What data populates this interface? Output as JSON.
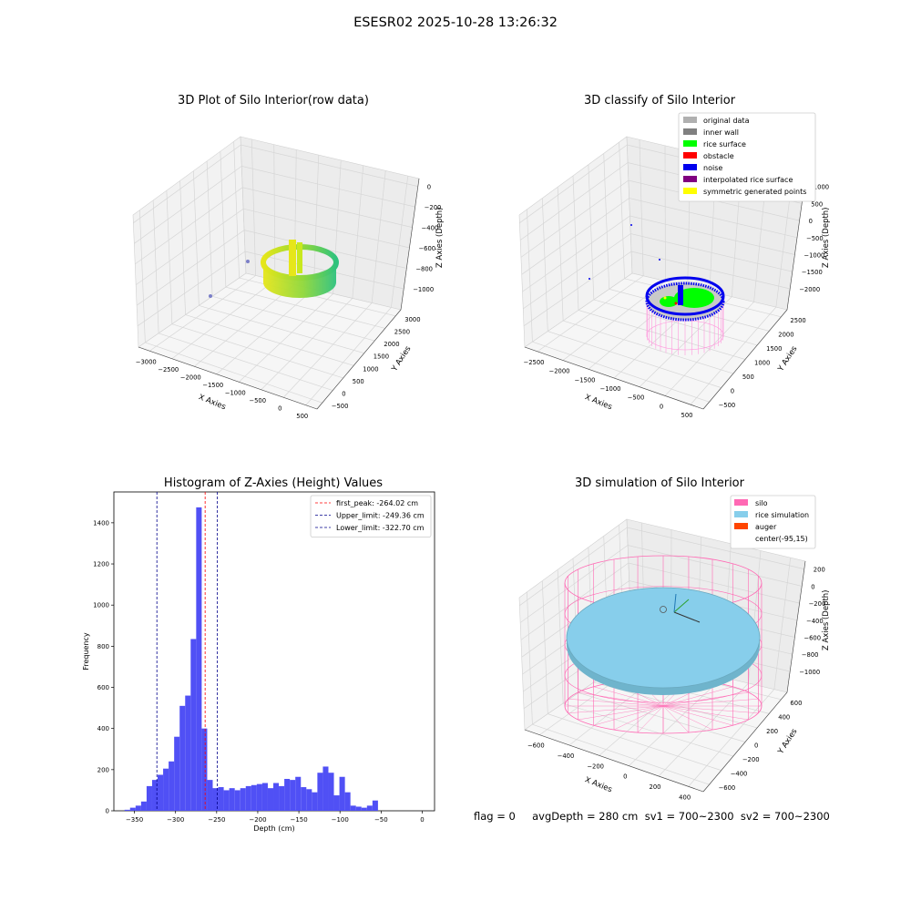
{
  "figure": {
    "suptitle": "ESESR02 2025-10-28 13:26:32",
    "status_line": "flag = 0     avgDepth = 280 cm  sv1 = 700~2300  sv2 = 700~2300"
  },
  "chart_data": [
    {
      "type": "scatter3d",
      "title": "3D Plot of Silo Interior(row data)",
      "xlabel": "X Axies",
      "ylabel": "Y Axies",
      "zlabel": "Z Axies (Depth)",
      "xticks": [
        "−3000",
        "−2500",
        "−2000",
        "−1500",
        "−1000",
        "−500",
        "0",
        "500"
      ],
      "yticks": [
        "−500",
        "0",
        "500",
        "1000",
        "1500",
        "2000",
        "2500",
        "3000"
      ],
      "zticks": [
        "0",
        "−200",
        "−400",
        "−600",
        "−800",
        "−1000"
      ],
      "colors": {
        "low": "#2ec27e",
        "high": "#e6e61a"
      }
    },
    {
      "type": "scatter3d",
      "title": "3D classify of Silo Interior",
      "xlabel": "X Axies",
      "ylabel": "Y Axies",
      "zlabel": "Z Axies (Depth)",
      "xticks": [
        "−2500",
        "−2000",
        "−1500",
        "−1000",
        "−500",
        "0",
        "500"
      ],
      "yticks": [
        "−500",
        "0",
        "500",
        "1000",
        "1500",
        "2000",
        "2500"
      ],
      "zticks": [
        "1000",
        "500",
        "0",
        "−500",
        "−1000",
        "−1500",
        "−2000"
      ],
      "legend_position": "top-right",
      "legend": [
        {
          "label": "original data",
          "color": "#b0b0b0"
        },
        {
          "label": "inner wall",
          "color": "#808080"
        },
        {
          "label": "rice surface",
          "color": "#00ff00"
        },
        {
          "label": "obstacle",
          "color": "#ff0000"
        },
        {
          "label": "noise",
          "color": "#0000ee"
        },
        {
          "label": "interpolated rice surface",
          "color": "#800080"
        },
        {
          "label": "symmetric generated points",
          "color": "#ffff00"
        }
      ]
    },
    {
      "type": "bar",
      "title": "Histogram of Z-Axies (Height) Values",
      "xlabel": "Depth (cm)",
      "ylabel": "Frequency",
      "bar_color": "#5050f5",
      "xlim": [
        -375,
        15
      ],
      "ylim": [
        0,
        1550
      ],
      "xticks": [
        -350,
        -300,
        -250,
        -200,
        -150,
        -100,
        -50,
        0
      ],
      "yticks": [
        0,
        200,
        400,
        600,
        800,
        1000,
        1200,
        1400
      ],
      "bin_width": 6.7,
      "bin_start": -362,
      "values": [
        5,
        15,
        25,
        45,
        120,
        150,
        175,
        205,
        240,
        360,
        510,
        560,
        835,
        1475,
        400,
        150,
        110,
        115,
        100,
        110,
        100,
        110,
        120,
        125,
        130,
        135,
        110,
        135,
        120,
        155,
        150,
        165,
        115,
        105,
        90,
        185,
        215,
        185,
        75,
        165,
        90,
        25,
        20,
        15,
        25,
        50
      ],
      "vlines": [
        {
          "label": "first_peak: -264.02 cm",
          "x": -264.02,
          "color": "#ff0000"
        },
        {
          "label": "Upper_limit: -249.36 cm",
          "x": -249.36,
          "color": "#00008b"
        },
        {
          "label": "Lower_limit: -322.70 cm",
          "x": -322.7,
          "color": "#00008b"
        }
      ],
      "legend_position": "top-right"
    },
    {
      "type": "surface3d",
      "title": "3D simulation of Silo Interior",
      "xlabel": "X Axies",
      "ylabel": "Y Axies",
      "zlabel": "Z Axies (Depth)",
      "xticks": [
        "−600",
        "−400",
        "−200",
        "0",
        "200",
        "400"
      ],
      "yticks": [
        "−600",
        "−400",
        "−200",
        "0",
        "200",
        "400",
        "600"
      ],
      "zticks": [
        "200",
        "0",
        "−200",
        "−400",
        "−600",
        "−800",
        "−1000"
      ],
      "legend_position": "top-right",
      "legend": [
        {
          "label": "silo",
          "color": "#ff69b4"
        },
        {
          "label": "rice simulation",
          "color": "#87ceeb"
        },
        {
          "label": "auger",
          "color": "#ff4500"
        },
        {
          "label": "center(-95,15)",
          "color": "#ffffff"
        }
      ]
    }
  ]
}
